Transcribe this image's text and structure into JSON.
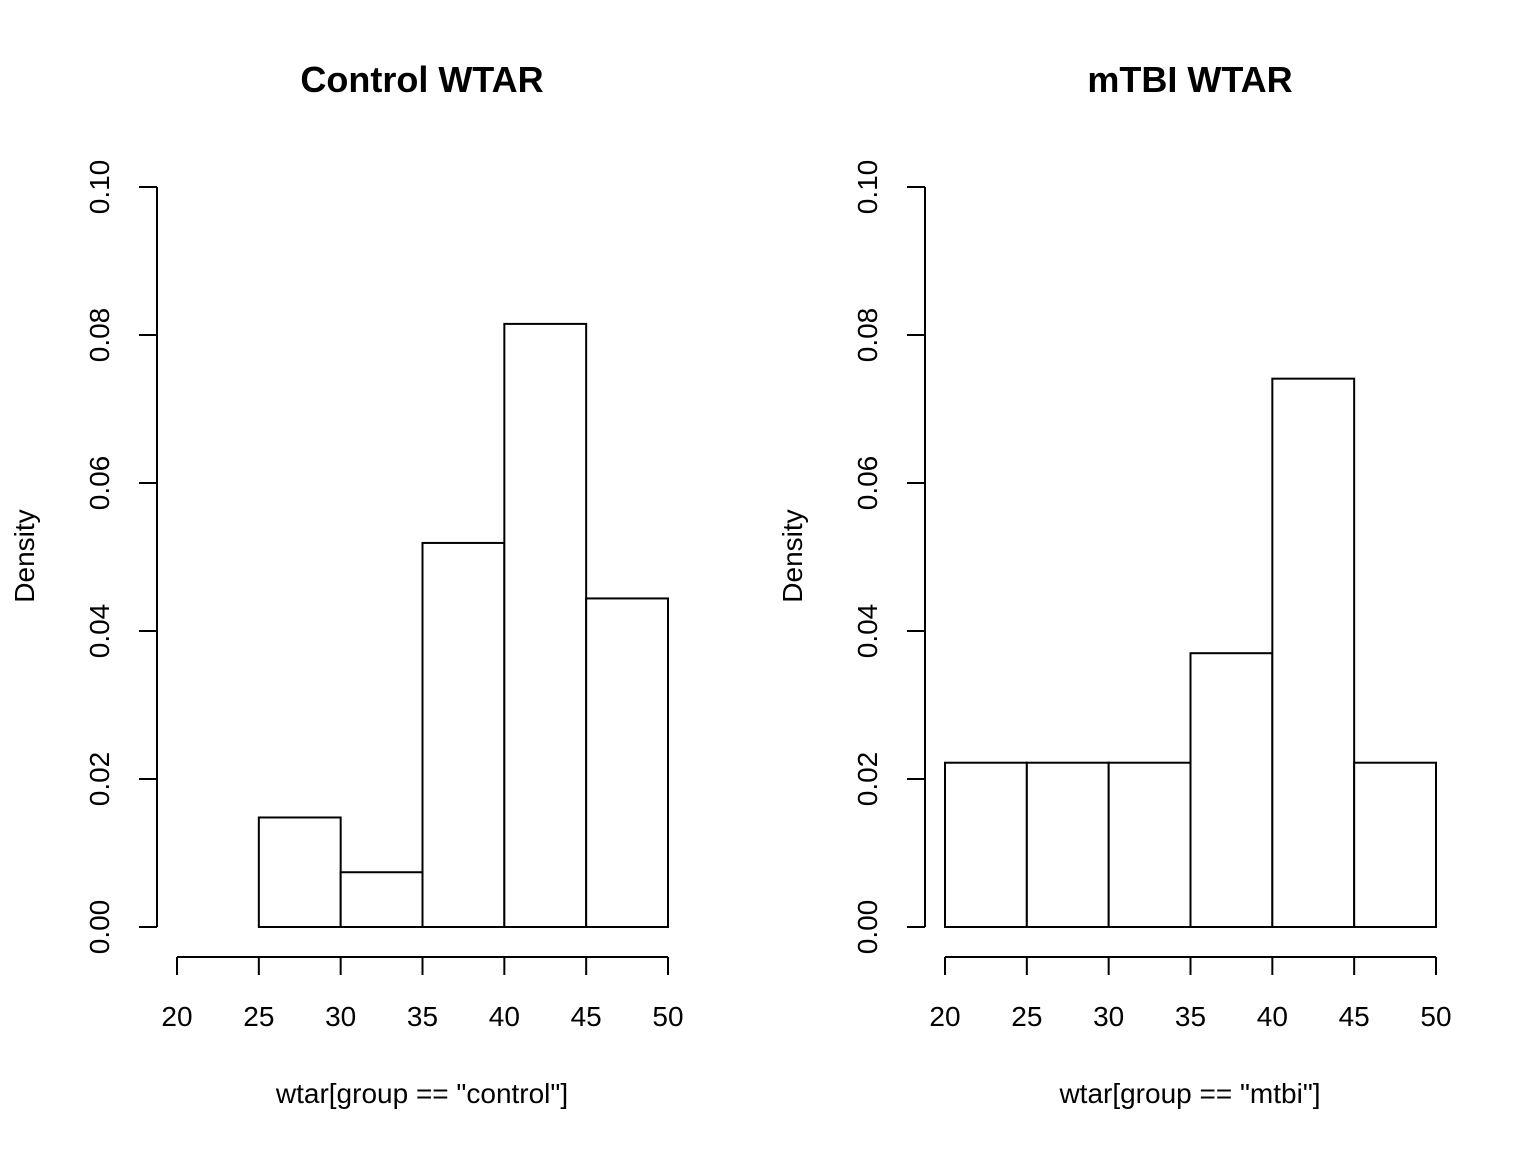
{
  "chart_data": [
    {
      "type": "bar",
      "title": "Control WTAR",
      "xlabel": "wtar[group == \"control\"]",
      "ylabel": "Density",
      "bin_edges": [
        25,
        30,
        35,
        40,
        45,
        50
      ],
      "values": [
        0.0148,
        0.0074,
        0.0519,
        0.0815,
        0.0444
      ],
      "xlim": [
        20,
        50
      ],
      "ylim": [
        0,
        0.1
      ],
      "xticks": [
        20,
        25,
        30,
        35,
        40,
        45,
        50
      ],
      "xtick_labels": [
        "20",
        "25",
        "30",
        "35",
        "40",
        "45",
        "50"
      ],
      "yticks": [
        0,
        0.02,
        0.04,
        0.06,
        0.08,
        0.1
      ],
      "ytick_labels": [
        "0.00",
        "0.02",
        "0.04",
        "0.06",
        "0.08",
        "0.10"
      ],
      "grid": false
    },
    {
      "type": "bar",
      "title": "mTBI WTAR",
      "xlabel": "wtar[group == \"mtbi\"]",
      "ylabel": "Density",
      "bin_edges": [
        20,
        25,
        30,
        35,
        40,
        45,
        50
      ],
      "values": [
        0.0222,
        0.0222,
        0.0222,
        0.037,
        0.0741,
        0.0222
      ],
      "xlim": [
        20,
        50
      ],
      "ylim": [
        0,
        0.1
      ],
      "xticks": [
        20,
        25,
        30,
        35,
        40,
        45,
        50
      ],
      "xtick_labels": [
        "20",
        "25",
        "30",
        "35",
        "40",
        "45",
        "50"
      ],
      "yticks": [
        0,
        0.02,
        0.04,
        0.06,
        0.08,
        0.1
      ],
      "ytick_labels": [
        "0.00",
        "0.02",
        "0.04",
        "0.06",
        "0.08",
        "0.10"
      ],
      "grid": false
    }
  ]
}
